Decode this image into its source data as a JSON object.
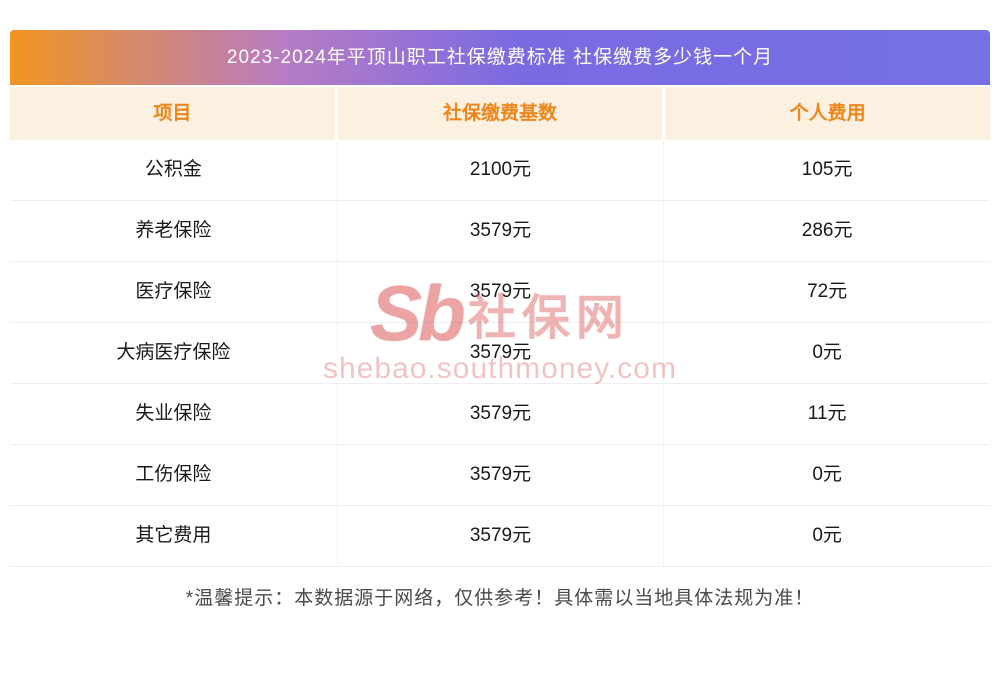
{
  "title": "2023-2024年平顶山职工社保缴费标准 社保缴费多少钱一个月",
  "table": {
    "headers": [
      "项目",
      "社保缴费基数",
      "个人费用"
    ],
    "rows": [
      [
        "公积金",
        "2100元",
        "105元"
      ],
      [
        "养老保险",
        "3579元",
        "286元"
      ],
      [
        "医疗保险",
        "3579元",
        "72元"
      ],
      [
        "大病医疗保险",
        "3579元",
        "0元"
      ],
      [
        "失业保险",
        "3579元",
        "11元"
      ],
      [
        "工伤保险",
        "3579元",
        "0元"
      ],
      [
        "其它费用",
        "3579元",
        "0元"
      ]
    ]
  },
  "watermark": {
    "logo": "Sb",
    "logo_text": "社保网",
    "url": "shebao.southmoney.com"
  },
  "footer_note": "*温馨提示：本数据源于网络，仅供参考！具体需以当地具体法规为准！",
  "colors": {
    "header_gradient_start": "#f0951f",
    "header_gradient_end": "#7570e6",
    "table_header_bg": "#fcf1e1",
    "table_header_text": "#f08519",
    "watermark": "#e06a6a"
  }
}
